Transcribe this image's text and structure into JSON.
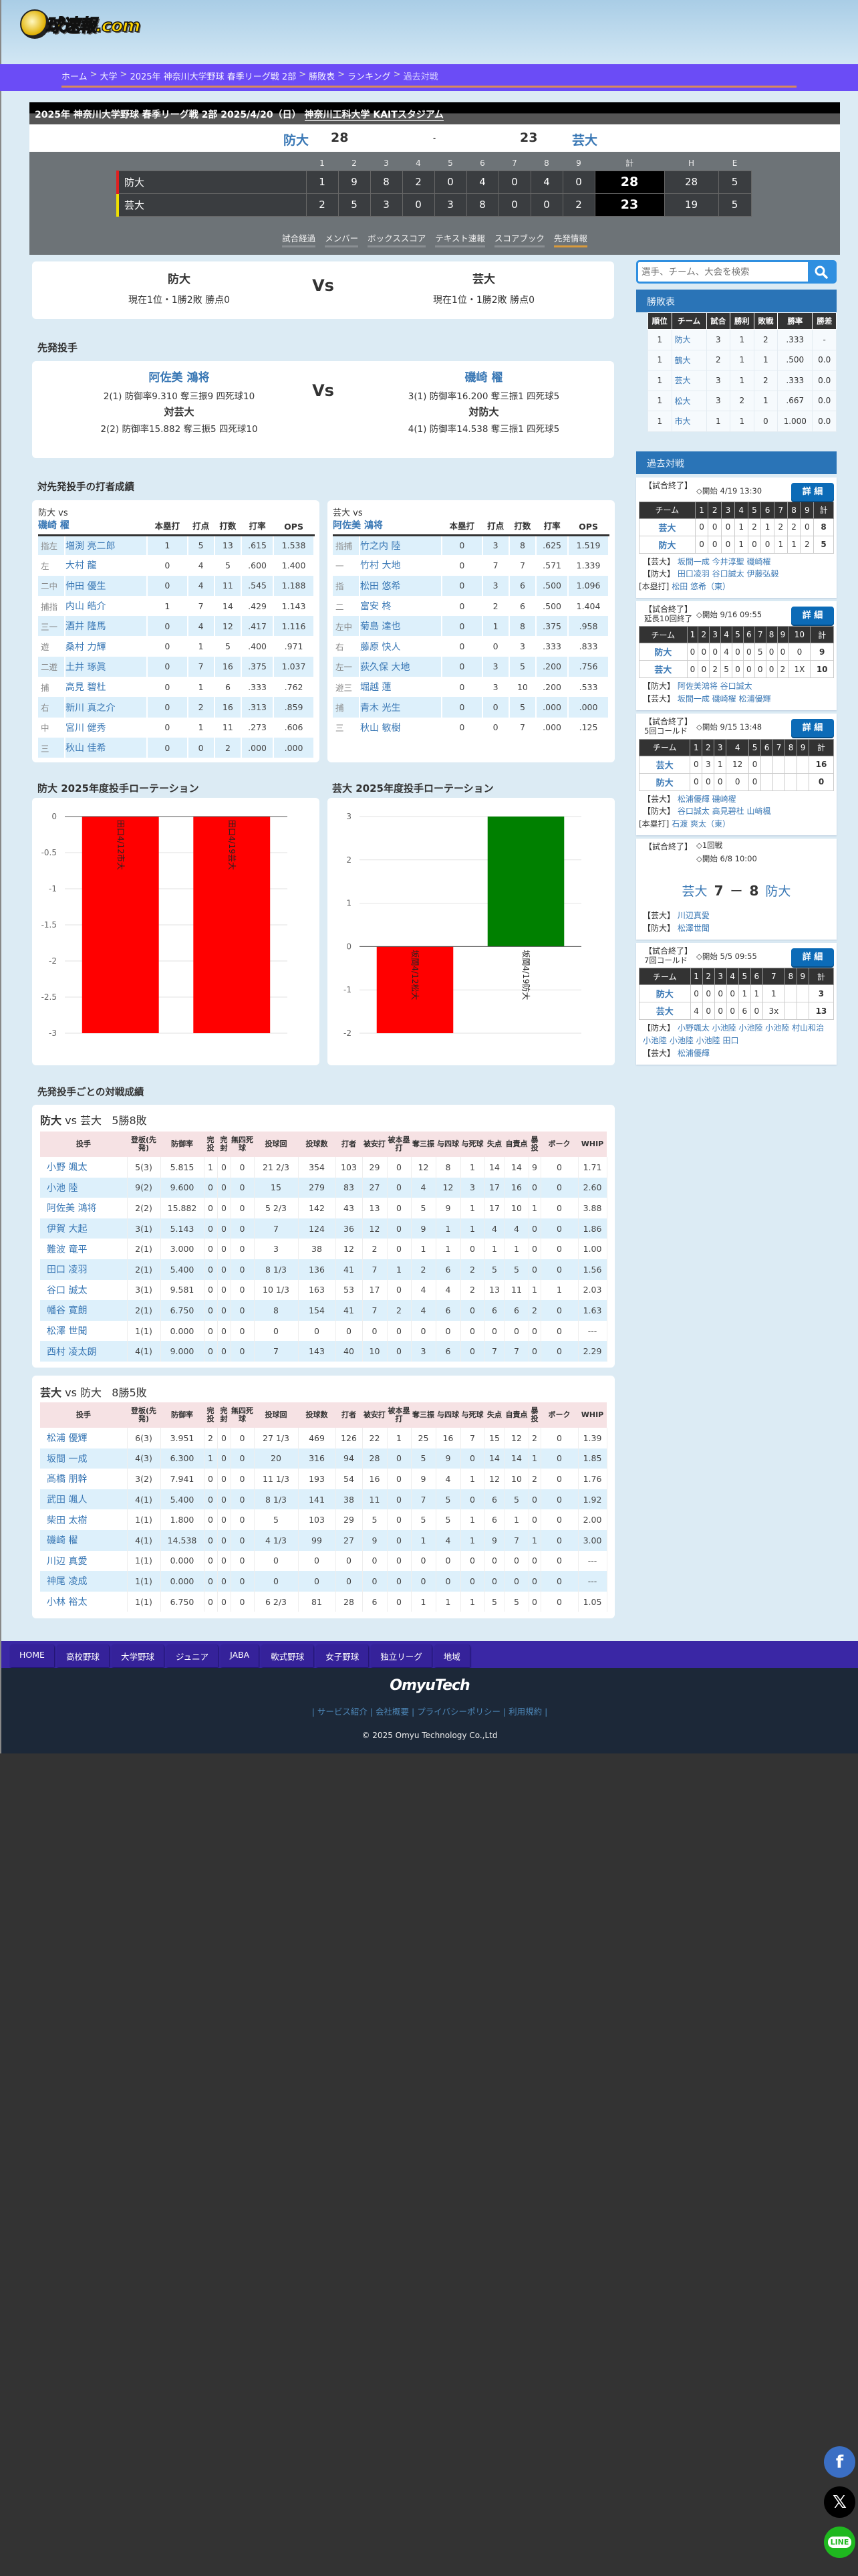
{
  "logo_text": "球速報.com",
  "breadcrumb": [
    "ホーム",
    "大学",
    "2025年 神奈川大学野球 春季リーグ戦 2部",
    "勝敗表",
    "ランキング",
    "過去対戦"
  ],
  "game": {
    "title": "2025年 神奈川大学野球 春季リーグ戦 2部  2025/4/20（日）",
    "venue": "神奈川工科大学 KAITスタジアム",
    "home": "防大",
    "home_score": "28",
    "sep": "-",
    "away_score": "23",
    "away": "芸大",
    "innings": [
      "1",
      "2",
      "3",
      "4",
      "5",
      "6",
      "7",
      "8",
      "9",
      "計",
      "H",
      "E"
    ],
    "linescore": [
      {
        "team": "防大",
        "color": "#e02020",
        "runs": [
          "1",
          "9",
          "8",
          "2",
          "0",
          "4",
          "0",
          "4",
          "0"
        ],
        "total": "28",
        "h": "28",
        "e": "5"
      },
      {
        "team": "芸大",
        "color": "#f0e000",
        "runs": [
          "2",
          "5",
          "3",
          "0",
          "3",
          "8",
          "0",
          "0",
          "2"
        ],
        "total": "23",
        "h": "19",
        "e": "5"
      }
    ],
    "tabs": [
      "試合経過",
      "メンバー",
      "ボックススコア",
      "テキスト速報",
      "スコアブック",
      "先発情報"
    ],
    "active_tab": 5
  },
  "teams": {
    "vs": "Vs",
    "left": {
      "name": "防大",
      "record": "現在1位・1勝2敗  勝点0"
    },
    "right": {
      "name": "芸大",
      "record": "現在1位・1勝2敗  勝点0"
    }
  },
  "starters": {
    "heading": "先発投手",
    "vs": "Vs",
    "left": {
      "name": "阿佐美 鴻将",
      "season": "2(1)  防御率9.310  奪三振9  四死球10",
      "vs_label": "対芸大",
      "vs_stats": "2(2)  防御率15.882  奪三振5  四死球10"
    },
    "right": {
      "name": "磯崎 櫂",
      "season": "3(1)  防御率16.200  奪三振1  四死球5",
      "vs_label": "対防大",
      "vs_stats": "4(1)  防御率14.538  奪三振1  四死球5"
    }
  },
  "batters": {
    "heading": "対先発投手の打者成績",
    "columns": [
      "本塁打",
      "打点",
      "打数",
      "打率",
      "OPS"
    ],
    "tables": [
      {
        "team_vs": "防大 vs",
        "pitcher": "磯崎 櫂",
        "rows": [
          [
            "指左",
            "増渕 亮二郎",
            "1",
            "5",
            "13",
            ".615",
            "1.538"
          ],
          [
            "左",
            "大村 龍",
            "0",
            "4",
            "5",
            ".600",
            "1.400"
          ],
          [
            "二中",
            "仲田 優生",
            "0",
            "4",
            "11",
            ".545",
            "1.188"
          ],
          [
            "捕指",
            "内山 皓介",
            "1",
            "7",
            "14",
            ".429",
            "1.143"
          ],
          [
            "三一",
            "酒井 隆馬",
            "0",
            "4",
            "12",
            ".417",
            "1.116"
          ],
          [
            "遊",
            "桑村 力輝",
            "0",
            "1",
            "5",
            ".400",
            ".971"
          ],
          [
            "二遊",
            "土井 琢眞",
            "0",
            "7",
            "16",
            ".375",
            "1.037"
          ],
          [
            "捕",
            "高見 碧杜",
            "0",
            "1",
            "6",
            ".333",
            ".762"
          ],
          [
            "右",
            "新川 真之介",
            "0",
            "2",
            "16",
            ".313",
            ".859"
          ],
          [
            "中",
            "宮川 健秀",
            "0",
            "1",
            "11",
            ".273",
            ".606"
          ],
          [
            "三",
            "秋山 佳希",
            "0",
            "0",
            "2",
            ".000",
            ".000"
          ]
        ]
      },
      {
        "team_vs": "芸大 vs",
        "pitcher": "阿佐美 鴻将",
        "rows": [
          [
            "指捕",
            "竹之内 陸",
            "0",
            "3",
            "8",
            ".625",
            "1.519"
          ],
          [
            "一",
            "竹村 大地",
            "0",
            "7",
            "7",
            ".571",
            "1.339"
          ],
          [
            "指",
            "松田 悠希",
            "0",
            "3",
            "6",
            ".500",
            "1.096"
          ],
          [
            "二",
            "富安 柊",
            "0",
            "2",
            "6",
            ".500",
            "1.404"
          ],
          [
            "左中",
            "菊島 達也",
            "0",
            "1",
            "8",
            ".375",
            ".958"
          ],
          [
            "右",
            "藤原 快人",
            "0",
            "0",
            "3",
            ".333",
            ".833"
          ],
          [
            "左一",
            "荻久保 大地",
            "0",
            "3",
            "5",
            ".200",
            ".756"
          ],
          [
            "遊三",
            "堀越 蓮",
            "0",
            "3",
            "10",
            ".200",
            ".533"
          ],
          [
            "捕",
            "青木 光生",
            "0",
            "0",
            "5",
            ".000",
            ".000"
          ],
          [
            "三",
            "秋山 敏樹",
            "0",
            "0",
            "7",
            ".000",
            ".125"
          ]
        ]
      }
    ]
  },
  "chart_data": [
    {
      "type": "bar",
      "title": "防大  2025年度投手ローテーション",
      "categories": [
        "田口4/12市大",
        "田口4/19芸大"
      ],
      "values": [
        -3,
        -3
      ],
      "colors": [
        "#ff0000",
        "#ff0000"
      ],
      "ylim": [
        -3,
        0
      ],
      "yticks": [
        "0",
        "-0.5",
        "-1",
        "-1.5",
        "-2",
        "-2.5",
        "-3"
      ],
      "grid": true
    },
    {
      "type": "bar",
      "title": "芸大  2025年度投手ローテーション",
      "categories": [
        "坂間4/12松大",
        "坂間4/19防大"
      ],
      "values": [
        -2,
        3
      ],
      "colors": [
        "#ff0000",
        "#008000"
      ],
      "ylim": [
        -2,
        3
      ],
      "yticks": [
        "3",
        "2",
        "1",
        "0",
        "-1",
        "-2"
      ],
      "grid": true
    }
  ],
  "pitching": {
    "heading": "先発投手ごとの対戦成績",
    "columns": [
      "投手",
      "登板(先発)",
      "防御率",
      "完投",
      "完封",
      "無四死球",
      "投球回",
      "投球数",
      "打者",
      "被安打",
      "被本塁打",
      "奪三振",
      "与四球",
      "与死球",
      "失点",
      "自責点",
      "暴投",
      "ボーク",
      "WHIP"
    ],
    "tables": [
      {
        "team": "防大",
        "vs": "vs",
        "opp": "芸大",
        "record": "5勝8敗",
        "rows": [
          [
            "小野 颯太",
            "5(3)",
            "5.815",
            "1",
            "0",
            "0",
            "21 2/3",
            "354",
            "103",
            "29",
            "0",
            "12",
            "8",
            "1",
            "14",
            "14",
            "9",
            "0",
            "1.71"
          ],
          [
            "小池 陸",
            "9(2)",
            "9.600",
            "0",
            "0",
            "0",
            "15",
            "279",
            "83",
            "27",
            "0",
            "4",
            "12",
            "3",
            "17",
            "16",
            "0",
            "0",
            "2.60"
          ],
          [
            "阿佐美 鴻将",
            "2(2)",
            "15.882",
            "0",
            "0",
            "0",
            "5 2/3",
            "142",
            "43",
            "13",
            "0",
            "5",
            "9",
            "1",
            "17",
            "10",
            "1",
            "0",
            "3.88"
          ],
          [
            "伊賀 大起",
            "3(1)",
            "5.143",
            "0",
            "0",
            "0",
            "7",
            "124",
            "36",
            "12",
            "0",
            "9",
            "1",
            "1",
            "4",
            "4",
            "0",
            "0",
            "1.86"
          ],
          [
            "難波 竜平",
            "2(1)",
            "3.000",
            "0",
            "0",
            "0",
            "3",
            "38",
            "12",
            "2",
            "0",
            "1",
            "1",
            "0",
            "1",
            "1",
            "0",
            "0",
            "1.00"
          ],
          [
            "田口 凌羽",
            "2(1)",
            "5.400",
            "0",
            "0",
            "0",
            "8 1/3",
            "136",
            "41",
            "7",
            "1",
            "2",
            "6",
            "2",
            "5",
            "5",
            "0",
            "0",
            "1.56"
          ],
          [
            "谷口 誠太",
            "3(1)",
            "9.581",
            "0",
            "0",
            "0",
            "10 1/3",
            "163",
            "53",
            "17",
            "0",
            "4",
            "4",
            "2",
            "13",
            "11",
            "1",
            "1",
            "2.03"
          ],
          [
            "幡谷 寛朗",
            "2(1)",
            "6.750",
            "0",
            "0",
            "0",
            "8",
            "154",
            "41",
            "7",
            "2",
            "4",
            "6",
            "0",
            "6",
            "6",
            "2",
            "0",
            "1.63"
          ],
          [
            "松澤 世聞",
            "1(1)",
            "0.000",
            "0",
            "0",
            "0",
            "0",
            "0",
            "0",
            "0",
            "0",
            "0",
            "0",
            "0",
            "0",
            "0",
            "0",
            "0",
            "---"
          ],
          [
            "西村 凌太朗",
            "4(1)",
            "9.000",
            "0",
            "0",
            "0",
            "7",
            "143",
            "40",
            "10",
            "0",
            "3",
            "6",
            "0",
            "7",
            "7",
            "0",
            "0",
            "2.29"
          ]
        ]
      },
      {
        "team": "芸大",
        "vs": "vs",
        "opp": "防大",
        "record": "8勝5敗",
        "rows": [
          [
            "松浦 優輝",
            "6(3)",
            "3.951",
            "2",
            "0",
            "0",
            "27 1/3",
            "469",
            "126",
            "22",
            "1",
            "25",
            "16",
            "7",
            "15",
            "12",
            "2",
            "0",
            "1.39"
          ],
          [
            "坂間 一成",
            "4(3)",
            "6.300",
            "1",
            "0",
            "0",
            "20",
            "316",
            "94",
            "28",
            "0",
            "5",
            "9",
            "0",
            "14",
            "14",
            "1",
            "0",
            "1.85"
          ],
          [
            "髙橋 朋幹",
            "3(2)",
            "7.941",
            "0",
            "0",
            "0",
            "11 1/3",
            "193",
            "54",
            "16",
            "0",
            "9",
            "4",
            "1",
            "12",
            "10",
            "2",
            "0",
            "1.76"
          ],
          [
            "武田 颯人",
            "4(1)",
            "5.400",
            "0",
            "0",
            "0",
            "8 1/3",
            "141",
            "38",
            "11",
            "0",
            "7",
            "5",
            "0",
            "6",
            "5",
            "0",
            "0",
            "1.92"
          ],
          [
            "柴田 太樹",
            "1(1)",
            "1.800",
            "0",
            "0",
            "0",
            "5",
            "103",
            "29",
            "5",
            "0",
            "5",
            "5",
            "1",
            "6",
            "1",
            "0",
            "0",
            "2.00"
          ],
          [
            "磯崎 櫂",
            "4(1)",
            "14.538",
            "0",
            "0",
            "0",
            "4 1/3",
            "99",
            "27",
            "9",
            "0",
            "1",
            "4",
            "1",
            "9",
            "7",
            "1",
            "0",
            "3.00"
          ],
          [
            "川辺 真愛",
            "1(1)",
            "0.000",
            "0",
            "0",
            "0",
            "0",
            "0",
            "0",
            "0",
            "0",
            "0",
            "0",
            "0",
            "0",
            "0",
            "0",
            "0",
            "---"
          ],
          [
            "神尾 凌成",
            "1(1)",
            "0.000",
            "0",
            "0",
            "0",
            "0",
            "0",
            "0",
            "0",
            "0",
            "0",
            "0",
            "0",
            "0",
            "0",
            "0",
            "0",
            "---"
          ],
          [
            "小林 裕太",
            "1(1)",
            "6.750",
            "0",
            "0",
            "0",
            "6 2/3",
            "81",
            "28",
            "6",
            "0",
            "1",
            "1",
            "1",
            "5",
            "5",
            "0",
            "0",
            "1.05"
          ]
        ]
      }
    ]
  },
  "sidebar": {
    "search_placeholder": "選手、チーム、大会を検索",
    "standings_title": "勝敗表",
    "standings_columns": [
      "順位",
      "チーム",
      "試合",
      "勝利",
      "敗戦",
      "勝率",
      "勝差"
    ],
    "standings": [
      [
        "1",
        "防大",
        "3",
        "1",
        "2",
        ".333",
        "-"
      ],
      [
        "1",
        "鶴大",
        "2",
        "1",
        "1",
        ".500",
        "0.0"
      ],
      [
        "1",
        "芸大",
        "3",
        "1",
        "2",
        ".333",
        "0.0"
      ],
      [
        "1",
        "松大",
        "3",
        "2",
        "1",
        ".667",
        "0.0"
      ],
      [
        "1",
        "市大",
        "1",
        "1",
        "0",
        "1.000",
        "0.0"
      ]
    ],
    "past_title": "過去対戦",
    "detail_label": "詳 細",
    "past_games": [
      {
        "status": "【試合終了】",
        "note": "",
        "start": "◇開始 4/19 13:30",
        "cols": [
          "チーム",
          "1",
          "2",
          "3",
          "4",
          "5",
          "6",
          "7",
          "8",
          "9",
          "計"
        ],
        "rows": [
          [
            "芸大",
            "0",
            "0",
            "0",
            "1",
            "2",
            "1",
            "2",
            "2",
            "0",
            "8"
          ],
          [
            "防大",
            "0",
            "0",
            "0",
            "1",
            "0",
            "0",
            "1",
            "1",
            "2",
            "5"
          ]
        ],
        "pitchers": [
          {
            "team": "【芸大】",
            "names": "坂間一成 今井淳聖 磯崎櫂"
          },
          {
            "team": "【防大】",
            "names": "田口凌羽 谷口誠太 伊藤弘毅"
          }
        ],
        "hr": {
          "label": "[本塁打]",
          "names": "松田 悠希（東）"
        }
      },
      {
        "status": "【試合終了】",
        "note": "延長10回終了",
        "start": "◇開始 9/16 09:55",
        "cols": [
          "チーム",
          "1",
          "2",
          "3",
          "4",
          "5",
          "6",
          "7",
          "8",
          "9",
          "10",
          "計"
        ],
        "rows": [
          [
            "防大",
            "0",
            "0",
            "0",
            "4",
            "0",
            "0",
            "5",
            "0",
            "0",
            "0",
            "9"
          ],
          [
            "芸大",
            "0",
            "0",
            "2",
            "5",
            "0",
            "0",
            "0",
            "0",
            "2",
            "1X",
            "10"
          ]
        ],
        "pitchers": [
          {
            "team": "【防大】",
            "names": "阿佐美鴻将 谷口誠太"
          },
          {
            "team": "【芸大】",
            "names": "坂間一成 磯崎櫂 松浦優輝"
          }
        ]
      },
      {
        "status": "【試合終了】",
        "note": "5回コールド",
        "start": "◇開始 9/15 13:48",
        "cols": [
          "チーム",
          "1",
          "2",
          "3",
          "4",
          "5",
          "6",
          "7",
          "8",
          "9",
          "計"
        ],
        "rows": [
          [
            "芸大",
            "0",
            "3",
            "1",
            "12",
            "0",
            "",
            "",
            "",
            "",
            "16"
          ],
          [
            "防大",
            "0",
            "0",
            "0",
            "0",
            "0",
            "",
            "",
            "",
            "",
            "0"
          ]
        ],
        "pitchers": [
          {
            "team": "【芸大】",
            "names": "松浦優輝 磯崎櫂"
          },
          {
            "team": "【防大】",
            "names": "谷口誠太 高見碧杜 山﨑楓"
          }
        ],
        "hr": {
          "label": "[本塁打]",
          "names": "石渡 爽太（東）"
        }
      },
      {
        "status": "【試合終了】",
        "round": "◇1回戦",
        "start": "◇開始 6/8 10:00",
        "score": {
          "home": "芸大",
          "home_score": "7",
          "dash": "ー",
          "away_score": "8",
          "away": "防大"
        },
        "pitchers": [
          {
            "team": "【芸大】",
            "names": "川辺真愛"
          },
          {
            "team": "【防大】",
            "names": "松澤世聞"
          }
        ]
      },
      {
        "status": "【試合終了】",
        "note": "7回コールド",
        "start": "◇開始 5/5 09:55",
        "cols": [
          "チーム",
          "1",
          "2",
          "3",
          "4",
          "5",
          "6",
          "7",
          "8",
          "9",
          "計"
        ],
        "rows": [
          [
            "防大",
            "0",
            "0",
            "0",
            "0",
            "1",
            "1",
            "1",
            "",
            "",
            "3"
          ],
          [
            "芸大",
            "4",
            "0",
            "0",
            "0",
            "6",
            "0",
            "3x",
            "",
            "",
            "13"
          ]
        ],
        "pitchers": [
          {
            "team": "【防大】",
            "names": "小野颯太 小池陸 小池陸 小池陸 村山和治 小池陸 小池陸 小池陸 田口"
          },
          {
            "team": "【芸大】",
            "names": "松浦優輝"
          }
        ]
      }
    ]
  },
  "footer": {
    "nav": [
      "HOME",
      "高校野球",
      "大学野球",
      "ジュニア",
      "JABA",
      "軟式野球",
      "女子野球",
      "独立リーグ",
      "地域"
    ],
    "logo_text": "OmyuTech",
    "links": [
      "サービス紹介",
      "会社概要",
      "プライバシーポリシー",
      "利用規約"
    ],
    "copyright": "© 2025 Omyu Technology Co.,Ltd"
  },
  "social": [
    {
      "icon": "facebook-icon",
      "glyph": "f",
      "color": "#3b6fc4"
    },
    {
      "icon": "x-icon",
      "glyph": "𝕏",
      "color": "#000000"
    },
    {
      "icon": "line-icon",
      "glyph": "LINE",
      "color": "#1fb81f"
    }
  ]
}
